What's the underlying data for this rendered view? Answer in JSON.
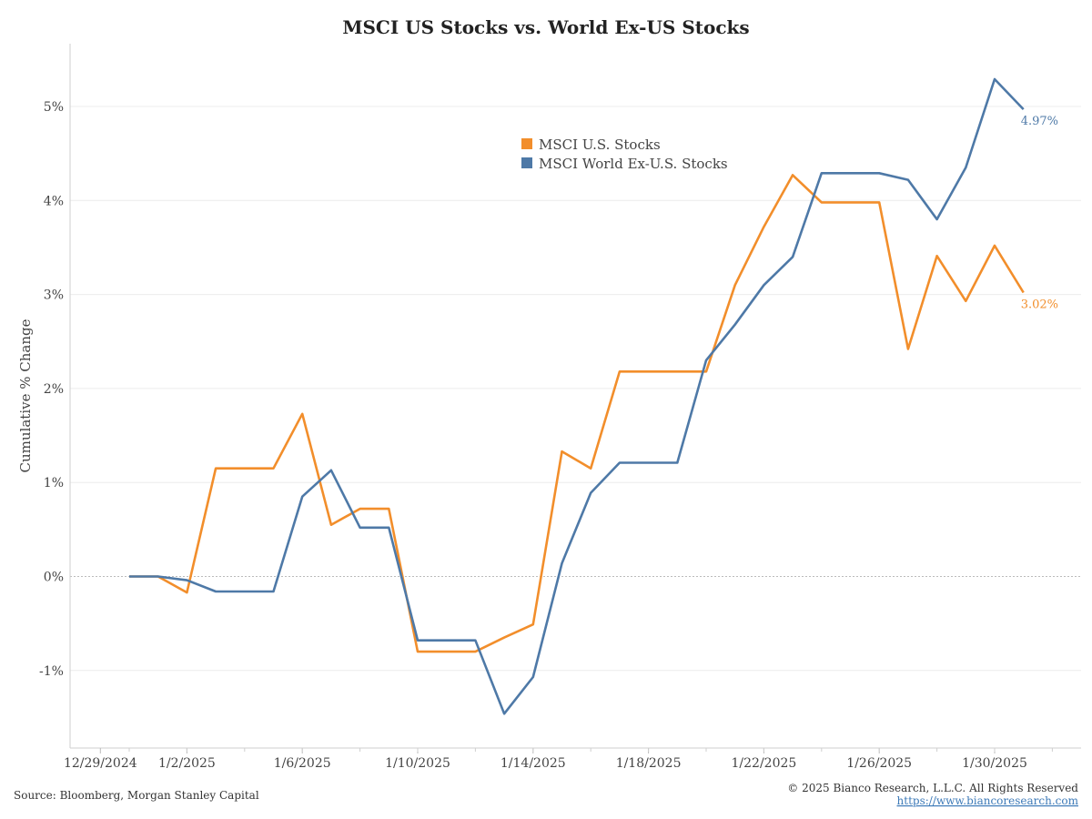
{
  "chart_data": {
    "type": "line",
    "title": "MSCI US Stocks vs. World Ex-US Stocks",
    "ylabel": "Cumulative % Change",
    "xlabel": "",
    "ylim": [
      -1.8,
      5.6
    ],
    "yticks": [
      -1,
      0,
      1,
      2,
      3,
      4,
      5
    ],
    "ytick_labels": [
      "-1%",
      "0%",
      "1%",
      "2%",
      "3%",
      "4%",
      "5%"
    ],
    "x_tick_labels": [
      {
        "label": "12/29/2024",
        "day": -1
      },
      {
        "label": "1/2/2025",
        "day": 2
      },
      {
        "label": "1/6/2025",
        "day": 6
      },
      {
        "label": "1/10/2025",
        "day": 10
      },
      {
        "label": "1/14/2025",
        "day": 14
      },
      {
        "label": "1/18/2025",
        "day": 18
      },
      {
        "label": "1/22/2025",
        "day": 22
      },
      {
        "label": "1/26/2025",
        "day": 26
      },
      {
        "label": "1/30/2025",
        "day": 30
      }
    ],
    "x_days": [
      0,
      1,
      2,
      3,
      4,
      5,
      6,
      7,
      8,
      9,
      10,
      11,
      12,
      13,
      14,
      15,
      16,
      17,
      18,
      19,
      20,
      21,
      22,
      23,
      24,
      25,
      26,
      27,
      28,
      29,
      30,
      31
    ],
    "x_dates": [
      "12/31/2024",
      "1/1/2025",
      "1/2/2025",
      "1/3/2025",
      "1/4/2025",
      "1/5/2025",
      "1/6/2025",
      "1/7/2025",
      "1/8/2025",
      "1/9/2025",
      "1/10/2025",
      "1/11/2025",
      "1/12/2025",
      "1/13/2025",
      "1/14/2025",
      "1/15/2025",
      "1/16/2025",
      "1/17/2025",
      "1/18/2025",
      "1/19/2025",
      "1/20/2025",
      "1/21/2025",
      "1/22/2025",
      "1/23/2025",
      "1/24/2025",
      "1/25/2025",
      "1/26/2025",
      "1/27/2025",
      "1/28/2025",
      "1/29/2025",
      "1/30/2025",
      "1/31/2025"
    ],
    "series": [
      {
        "name": "MSCI U.S. Stocks",
        "color": "#f28e2b",
        "values": [
          0,
          0,
          -0.17,
          1.15,
          1.15,
          1.15,
          1.73,
          0.55,
          0.72,
          0.72,
          -0.8,
          -0.8,
          -0.8,
          -0.65,
          -0.51,
          1.33,
          1.15,
          2.18,
          2.18,
          2.18,
          2.18,
          3.1,
          3.72,
          4.27,
          3.98,
          3.98,
          3.98,
          2.42,
          3.41,
          2.93,
          3.52,
          3.02
        ],
        "end_label": "3.02%"
      },
      {
        "name": "MSCI World Ex-U.S. Stocks",
        "color": "#4e79a7",
        "values": [
          0,
          0,
          -0.04,
          -0.16,
          -0.16,
          -0.16,
          0.85,
          1.13,
          0.52,
          0.52,
          -0.68,
          -0.68,
          -0.68,
          -1.46,
          -1.07,
          0.14,
          0.89,
          1.21,
          1.21,
          1.21,
          2.3,
          2.68,
          3.1,
          3.4,
          4.29,
          4.29,
          4.29,
          4.22,
          3.8,
          4.35,
          5.29,
          4.97
        ],
        "end_label": "4.97%"
      }
    ],
    "grid": true,
    "legend_position": "top-center"
  },
  "footer": {
    "source": "Source: Bloomberg, Morgan Stanley Capital",
    "copyright": "© 2025 Bianco Research, L.L.C. All Rights Reserved",
    "link": "https://www.biancoresearch.com"
  }
}
